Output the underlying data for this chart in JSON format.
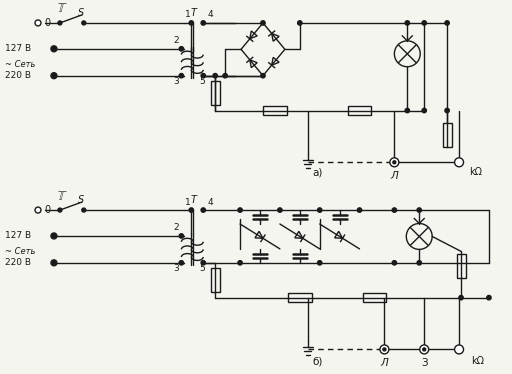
{
  "bg_color": "#f5f5f0",
  "line_color": "#1a1a1a",
  "title_a": "а)",
  "title_b": "б)",
  "label_0": "0",
  "label_127": "127 В",
  "label_set": "~ Сеть",
  "label_220": "220 В",
  "label_S": "S",
  "label_T": "T",
  "label_1": "1",
  "label_2": "2",
  "label_3": "3",
  "label_4": "4",
  "label_5": "5",
  "label_L": "Л",
  "label_kOhm": "kΩ",
  "label_3t": "З",
  "figsize": [
    5.12,
    3.74
  ],
  "dpi": 100
}
